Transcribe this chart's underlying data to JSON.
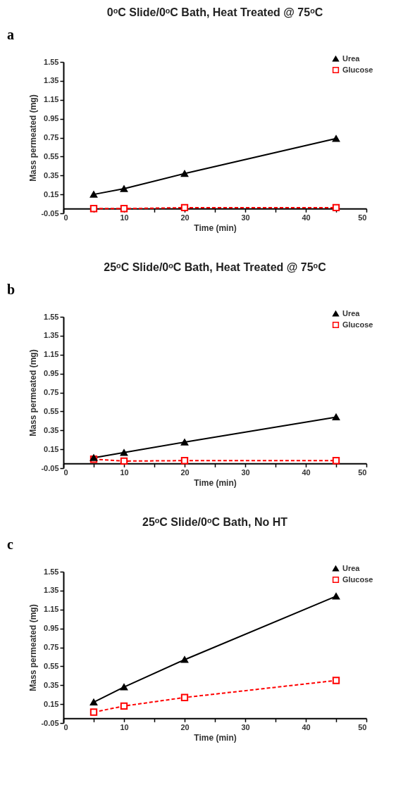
{
  "chart_data": [
    {
      "type": "line",
      "title": "0ᵒC Slide/0ᵒC Bath, Heat Treated @ 75ᵒC",
      "xlabel": "Time (min)",
      "ylabel": "Mass permeated (mg)",
      "annotations": [
        "a"
      ],
      "x": [
        5,
        10,
        20,
        45
      ],
      "series": [
        {
          "name": "Urea",
          "color": "#000000",
          "marker": "triangle",
          "line_style": "solid",
          "values": [
            0.15,
            0.21,
            0.37,
            0.74
          ]
        },
        {
          "name": "Glucose",
          "color": "#ff0000",
          "marker": "square",
          "line_style": "dashed",
          "values": [
            0.0,
            0.0,
            0.01,
            0.01
          ]
        }
      ],
      "xlim": [
        0,
        50
      ],
      "xticks": [
        0,
        {
          "value": 5,
          "label": null
        },
        10,
        {
          "value": 15,
          "label": null
        },
        20,
        {
          "value": 25,
          "label": null
        },
        30,
        {
          "value": 35,
          "label": null
        },
        40,
        {
          "value": 45,
          "label": null
        },
        50
      ],
      "ylim": [
        -0.05,
        1.55
      ],
      "yticks": [
        -0.05,
        0.15,
        0.35,
        0.55,
        0.75,
        0.95,
        1.15,
        1.35,
        1.55
      ],
      "grid": false,
      "legend": "top right"
    },
    {
      "type": "line",
      "title": "25ᵒC Slide/0ᵒC Bath, Heat Treated @ 75ᵒC",
      "xlabel": "Time (min)",
      "ylabel": "Mass permeated (mg)",
      "annotations": [
        "b"
      ],
      "x": [
        5,
        10,
        20,
        45
      ],
      "series": [
        {
          "name": "Urea",
          "color": "#000000",
          "marker": "triangle",
          "line_style": "solid",
          "values": [
            0.06,
            0.115,
            0.225,
            0.49
          ]
        },
        {
          "name": "Glucose",
          "color": "#ff0000",
          "marker": "square",
          "line_style": "dashed",
          "values": [
            0.045,
            0.025,
            0.03,
            0.03
          ]
        }
      ],
      "xlim": [
        0,
        50
      ],
      "xticks": [
        0,
        {
          "value": 5,
          "label": null
        },
        10,
        {
          "value": 15,
          "label": null
        },
        20,
        {
          "value": 25,
          "label": null
        },
        30,
        {
          "value": 35,
          "label": null
        },
        40,
        {
          "value": 45,
          "label": null
        },
        50
      ],
      "ylim": [
        -0.05,
        1.55
      ],
      "yticks": [
        -0.05,
        0.15,
        0.35,
        0.55,
        0.75,
        0.95,
        1.15,
        1.35,
        1.55
      ],
      "grid": false,
      "legend": "top right"
    },
    {
      "type": "line",
      "title": "25ᵒC Slide/0ᵒC Bath, No HT",
      "xlabel": "Time (min)",
      "ylabel": "Mass permeated (mg)",
      "annotations": [
        "c"
      ],
      "x": [
        5,
        10,
        20,
        45
      ],
      "series": [
        {
          "name": "Urea",
          "color": "#000000",
          "marker": "triangle",
          "line_style": "solid",
          "values": [
            0.17,
            0.33,
            0.62,
            1.29
          ]
        },
        {
          "name": "Glucose",
          "color": "#ff0000",
          "marker": "square",
          "line_style": "dashed",
          "values": [
            0.065,
            0.13,
            0.22,
            0.4
          ]
        }
      ],
      "xlim": [
        0,
        50
      ],
      "xticks": [
        0,
        {
          "value": 5,
          "label": null
        },
        10,
        {
          "value": 15,
          "label": null
        },
        20,
        {
          "value": 25,
          "label": null
        },
        30,
        {
          "value": 35,
          "label": null
        },
        40,
        {
          "value": 45,
          "label": null
        },
        50
      ],
      "ylim": [
        -0.05,
        1.55
      ],
      "yticks": [
        -0.05,
        0.15,
        0.35,
        0.55,
        0.75,
        0.95,
        1.15,
        1.35,
        1.55
      ],
      "grid": false,
      "legend": "top right"
    }
  ]
}
